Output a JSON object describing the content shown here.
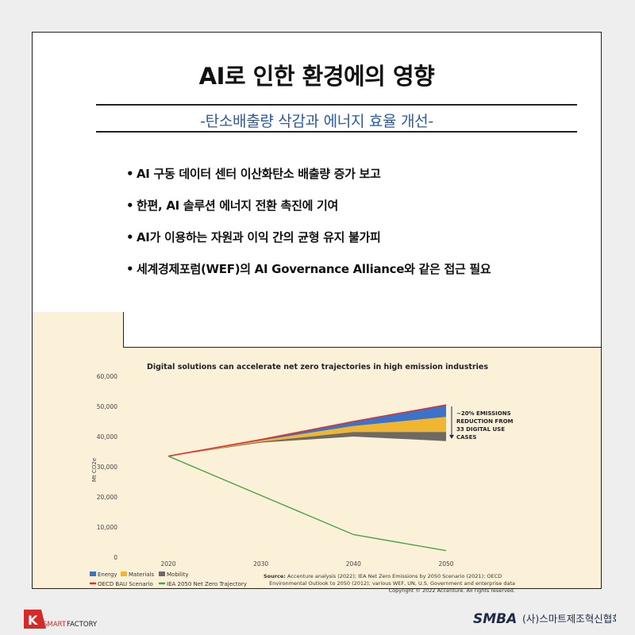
{
  "page": {
    "title": "AI로 인한 환경에의 영향",
    "subtitle": "-탄소배출량 삭감과 에너지 효율 개선-",
    "bullets": [
      "AI 구동 데이터 센터 이산화탄소 배출량 증가 보고",
      "한편, AI 솔루션 에너지 전환 촉진에 기여",
      "AI가 이용하는 자원과 이익 간의 균형 유지 불가피",
      "세계경제포럼(WEF)의 AI Governance Alliance와 같은 접근 필요"
    ]
  },
  "chart_data": {
    "type": "area",
    "title": "Digital solutions can accelerate net zero trajectories in high emission industries",
    "ylabel": "Mt CO2e",
    "xlabel": "",
    "ylim": [
      0,
      60000
    ],
    "yticks": [
      "60,000",
      "50,000",
      "40,000",
      "30,000",
      "20,000",
      "10,000",
      "0"
    ],
    "ytick_values": [
      60000,
      50000,
      40000,
      30000,
      20000,
      10000,
      0
    ],
    "categories": [
      "2020",
      "2030",
      "2040",
      "2050"
    ],
    "x": [
      2020,
      2030,
      2040,
      2050
    ],
    "series": [
      {
        "name": "OECD BAU Scenario",
        "kind": "line",
        "color": "#e0322b",
        "values": [
          33500,
          39000,
          45000,
          50500
        ]
      },
      {
        "name": "Energy",
        "kind": "area",
        "color": "#3a73c9",
        "values": [
          33500,
          38700,
          43500,
          46500
        ]
      },
      {
        "name": "Materials",
        "kind": "area",
        "color": "#f2b530",
        "values": [
          33500,
          38300,
          41500,
          41500
        ]
      },
      {
        "name": "Mobility",
        "kind": "area",
        "color": "#6e6a63",
        "values": [
          33500,
          38000,
          40000,
          38500
        ]
      },
      {
        "name": "IEA 2050 Net Zero Trajectory",
        "kind": "line",
        "color": "#48a345",
        "values": [
          33500,
          20500,
          7500,
          2200
        ]
      }
    ],
    "annotation": {
      "lines": [
        "~20% EMISSIONS",
        "REDUCTION FROM",
        "33 DIGITAL USE",
        "CASES"
      ]
    },
    "legend": [
      {
        "label": "Energy",
        "color": "#3a73c9",
        "shape": "box"
      },
      {
        "label": "Materials",
        "color": "#f2b530",
        "shape": "box"
      },
      {
        "label": "Mobility",
        "color": "#6e6a63",
        "shape": "box"
      },
      {
        "label": "OECD BAU Scenario",
        "color": "#e0322b",
        "shape": "line"
      },
      {
        "label": "IEA 2050 Net Zero Trajectory",
        "color": "#48a345",
        "shape": "line"
      }
    ],
    "source_label": "Source:",
    "source_lines": [
      "Accenture analysis (2022); IEA Net Zero Emissions by 2050 Scenario (2021); OECD",
      "Environmental Outlook to 2050 (2012); various WEF, UN, U.S. Government and enterprise data",
      "Copyright © 2022 Accenture. All rights reserved."
    ]
  },
  "footer": {
    "left_logo_k": "K",
    "left_logo_smart": "SMART",
    "left_logo_factory": "FACTORY",
    "right_logo_mark": "SMBA",
    "right_logo_text": "(사)스마트제조혁신협회"
  },
  "colors": {
    "accent_blue": "#2b5aa6",
    "panel": "#fbf1d8",
    "k_red": "#d42a2a"
  }
}
